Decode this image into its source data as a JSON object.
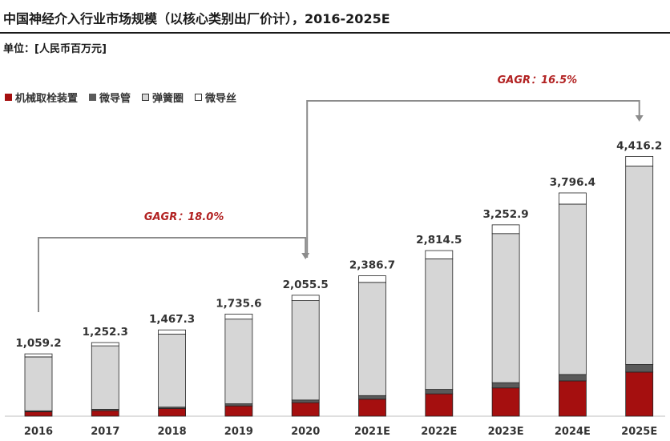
{
  "header": {
    "title": "中国神经介入行业市场规模（以核心类别出厂价计），2016-2025E",
    "unit": "单位：[人民币百万元]"
  },
  "colors": {
    "mechanical": "#a50f0f",
    "microcatheter": "#5a5a5a",
    "coil": "#d6d6d6",
    "guidewire": "#ffffff",
    "cagr_text": "#b22222",
    "arrow": "#8c8c8c"
  },
  "chart_data": {
    "type": "bar",
    "stacked": true,
    "categories": [
      "2016",
      "2017",
      "2018",
      "2019",
      "2020",
      "2021E",
      "2022E",
      "2023E",
      "2024E",
      "2025E"
    ],
    "series": [
      {
        "name": "机械取栓装置",
        "values": [
          75,
          95,
          130,
          175,
          230,
          290,
          380,
          480,
          600,
          750
        ]
      },
      {
        "name": "微导管",
        "values": [
          17,
          20,
          25,
          35,
          45,
          60,
          75,
          90,
          110,
          130
        ]
      },
      {
        "name": "弹簧圈",
        "values": [
          915,
          1082,
          1240,
          1440,
          1690,
          1925,
          2220,
          2535,
          2896,
          3371
        ]
      },
      {
        "name": "微导丝",
        "values": [
          52.2,
          55.3,
          72.3,
          85.6,
          90.5,
          111.7,
          139.5,
          147.9,
          190.4,
          165.2
        ]
      }
    ],
    "totals": [
      1059.2,
      1252.3,
      1467.3,
      1735.6,
      2055.5,
      2386.7,
      2814.5,
      3252.9,
      3796.4,
      4416.2
    ],
    "total_labels": [
      "1,059.2",
      "1,252.3",
      "1,467.3",
      "1,735.6",
      "2,055.5",
      "2,386.7",
      "2,814.5",
      "3,252.9",
      "3,796.4",
      "4,416.2"
    ],
    "ylim": [
      0,
      4700
    ],
    "legend_position": "top-left",
    "annotations": [
      {
        "text": "GAGR：18.0%",
        "from": "2016",
        "to": "2020"
      },
      {
        "text": "GAGR：16.5%",
        "from": "2020",
        "to": "2025E"
      }
    ]
  }
}
